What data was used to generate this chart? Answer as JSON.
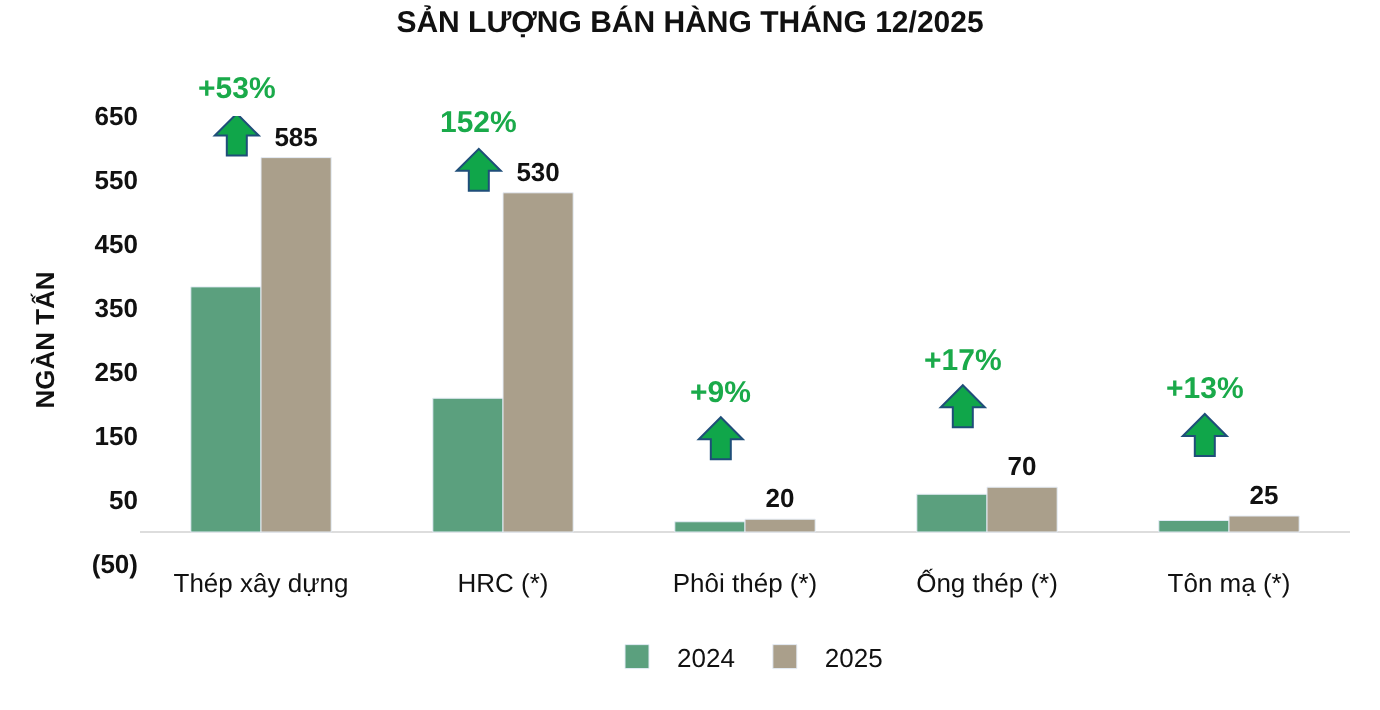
{
  "chart_data": {
    "type": "bar",
    "title": "SẢN LƯỢNG BÁN HÀNG THÁNG 12/2025",
    "ylabel": "NGÀN TẤN",
    "categories": [
      "Thép xây dựng",
      "HRC (*)",
      "Phôi thép (*)",
      "Ống thép (*)",
      "Tôn mạ (*)"
    ],
    "series": [
      {
        "name": "2024",
        "color": "#5ba07e",
        "values": [
          383,
          209,
          16,
          59,
          18
        ]
      },
      {
        "name": "2025",
        "color": "#aa9f8b",
        "values": [
          585,
          530,
          20,
          70,
          25
        ],
        "value_labels": [
          "585",
          "530",
          "20",
          "70",
          "25"
        ]
      }
    ],
    "ylim": [
      -50,
      650
    ],
    "yticks": [
      {
        "value": -50,
        "label": "(50)"
      },
      50,
      150,
      250,
      350,
      450,
      550,
      650
    ],
    "legend": "bottom",
    "annotations": [
      "+53%",
      "152%",
      "+9%",
      "+17%",
      "+13%"
    ]
  }
}
